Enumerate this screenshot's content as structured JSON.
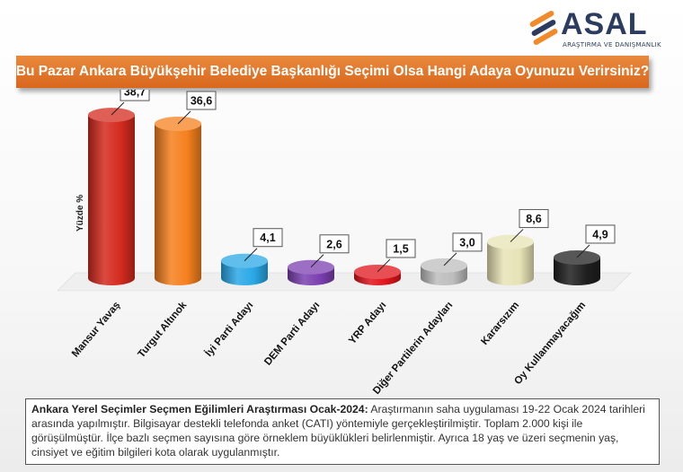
{
  "brand": {
    "name": "ASAL",
    "tagline": "ARAŞTIRMA VE DANIŞMANLIK",
    "colors": {
      "orange": "#f08a2a",
      "navy": "#2b3c5e"
    }
  },
  "title": "Bu Pazar Ankara Büyükşehir Belediye Başkanlığı Seçimi Olsa Hangi Adaya Oyunuzu Verirsiniz?",
  "chart_data": {
    "type": "bar",
    "title": "Bu Pazar Ankara Büyükşehir Belediye Başkanlığı Seçimi Olsa Hangi Adaya Oyunuzu Verirsiniz?",
    "ylabel": "Yüzde %",
    "xlabel": "",
    "ylim": [
      0,
      40
    ],
    "grid": false,
    "categories": [
      "Mansur Yavaş",
      "Turgut Altınok",
      "İyi Parti Adayı",
      "DEM Parti Adayı",
      "YRP Adayı",
      "Diğer Partilerin Adayları",
      "Kararsızım",
      "Oy Kullanmayacağım"
    ],
    "values": [
      38.7,
      36.6,
      4.1,
      2.6,
      1.5,
      3.0,
      8.6,
      4.9
    ],
    "labels": [
      "38,7",
      "36,6",
      "4,1",
      "2,6",
      "1,5",
      "3,0",
      "8,6",
      "4,9"
    ],
    "colors": [
      "#d42a1e",
      "#f5801e",
      "#2aa8e6",
      "#7b3fb0",
      "#e0141b",
      "#bdbdbd",
      "#e7e3b6",
      "#1f1f1f"
    ]
  },
  "note": {
    "heading": "Ankara Yerel Seçimler Seçmen Eğilimleri Araştırması Ocak-2024:",
    "body": "Araştırmanın saha uygulaması 19-22 Ocak 2024 tarihleri arasında yapılmıştır. Bilgisayar destekli telefonda anket (CATI) yöntemiyle gerçekleştirilmiştir. Toplam 2.000 kişi ile görüşülmüştür. İlçe bazlı seçmen sayısına göre örneklem büyüklükleri belirlenmiştir. Ayrıca 18 yaş ve üzeri seçmenin yaş, cinsiyet ve eğitim bilgileri kota olarak uygulanmıştır."
  }
}
